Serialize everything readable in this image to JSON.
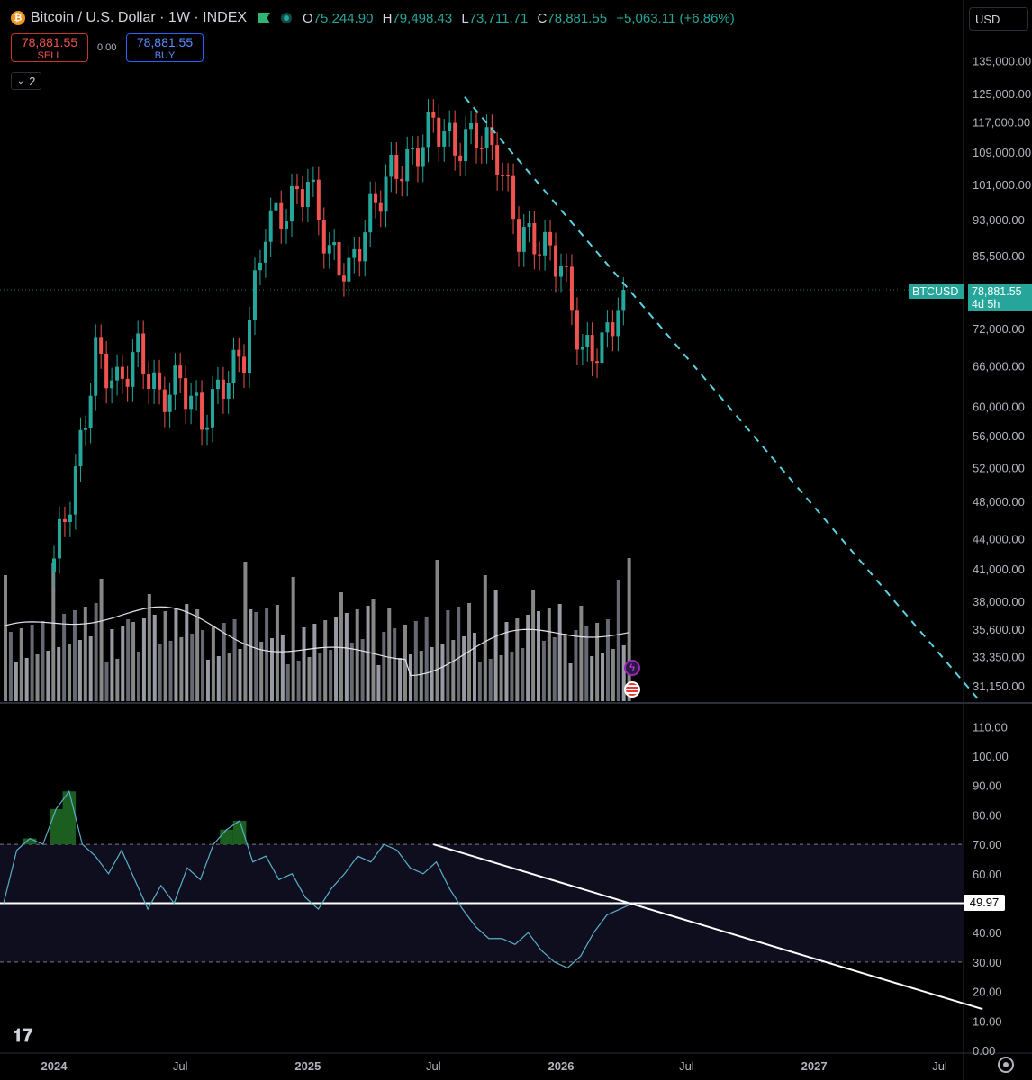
{
  "header": {
    "title": "Bitcoin / U.S. Dollar · 1W · INDEX",
    "ohlc": [
      {
        "k": "O",
        "v": "75,244.90"
      },
      {
        "k": "H",
        "v": "79,498.43"
      },
      {
        "k": "L",
        "v": "73,711.71"
      },
      {
        "k": "C",
        "v": "78,881.55"
      }
    ],
    "change": "+5,063.11 (+6.86%)"
  },
  "trade": {
    "sell_price": "78,881.55",
    "sell_label": "SELL",
    "spread": "0.00",
    "buy_price": "78,881.55",
    "buy_label": "BUY",
    "layers_count": "2"
  },
  "currency": "USD",
  "price_tag": {
    "symbol": "BTCUSD",
    "price": "78,881.55",
    "countdown": "4d 5h"
  },
  "rsi_tag": "49.97",
  "colors": {
    "up": "#26a69a",
    "down": "#ef5350",
    "trendline": "#5ad2e0",
    "rsi_line": "#5ab0c9",
    "rsi_band": "#0f0e1f"
  },
  "chart_data": [
    {
      "type": "candlestick",
      "title": "Bitcoin / U.S. Dollar · 1W · INDEX",
      "scale": "log",
      "ylim": [
        30000,
        148000
      ],
      "y_ticks": [
        "135,000.00",
        "125,000.00",
        "117,000.00",
        "109,000.00",
        "101,000.00",
        "93,000.00",
        "85,500.00",
        "78,881.55",
        "72,000.00",
        "66,000.00",
        "60,000.00",
        "56,000.00",
        "52,000.00",
        "48,000.00",
        "44,000.00",
        "41,000.00",
        "38,000.00",
        "35,600.00",
        "33,350.00",
        "31,150.00"
      ],
      "x_ticks": [
        "2024",
        "Jul",
        "2025",
        "Jul",
        "2026",
        "Jul",
        "2027",
        "Jul"
      ],
      "close_series": [
        {
          "date": "2024-01-01",
          "close": 42000
        },
        {
          "date": "2024-02-01",
          "close": 51000
        },
        {
          "date": "2024-03-01",
          "close": 68000
        },
        {
          "date": "2024-04-01",
          "close": 63000
        },
        {
          "date": "2024-05-01",
          "close": 68500
        },
        {
          "date": "2024-06-01",
          "close": 61000
        },
        {
          "date": "2024-07-01",
          "close": 64000
        },
        {
          "date": "2024-08-01",
          "close": 58000
        },
        {
          "date": "2024-09-01",
          "close": 63500
        },
        {
          "date": "2024-10-01",
          "close": 68000
        },
        {
          "date": "2024-11-01",
          "close": 92000
        },
        {
          "date": "2024-12-01",
          "close": 95000
        },
        {
          "date": "2025-01-01",
          "close": 102000
        },
        {
          "date": "2025-02-01",
          "close": 86000
        },
        {
          "date": "2025-03-01",
          "close": 82000
        },
        {
          "date": "2025-04-01",
          "close": 94500
        },
        {
          "date": "2025-05-01",
          "close": 104000
        },
        {
          "date": "2025-06-01",
          "close": 107000
        },
        {
          "date": "2025-07-01",
          "close": 117500
        },
        {
          "date": "2025-08-01",
          "close": 110000
        },
        {
          "date": "2025-09-01",
          "close": 114000
        },
        {
          "date": "2025-10-01",
          "close": 108000
        },
        {
          "date": "2025-11-01",
          "close": 90000
        },
        {
          "date": "2025-12-01",
          "close": 88000
        },
        {
          "date": "2026-01-01",
          "close": 84000
        },
        {
          "date": "2026-02-01",
          "close": 68000
        },
        {
          "date": "2026-03-01",
          "close": 69000
        },
        {
          "date": "2026-04-01",
          "close": 78881.55
        }
      ],
      "trendline": {
        "from": {
          "date": "2025-08-15",
          "price": 124000
        },
        "to": {
          "date": "2026-04-15",
          "price": 78000
        }
      }
    },
    {
      "type": "line",
      "series": [
        {
          "name": "RSI",
          "values": [
            50,
            68,
            72,
            70,
            82,
            88,
            70,
            66,
            60,
            68,
            58,
            48,
            56,
            50,
            62,
            58,
            70,
            75,
            78,
            64,
            66,
            58,
            60,
            52,
            48,
            55,
            60,
            66,
            64,
            70,
            68,
            62,
            60,
            64,
            55,
            48,
            42,
            38,
            38,
            36,
            40,
            34,
            30,
            28,
            32,
            40,
            46,
            48,
            50
          ]
        }
      ],
      "ylim": [
        0,
        115
      ],
      "y_ticks": [
        "110.00",
        "100.00",
        "90.00",
        "80.00",
        "70.00",
        "60.00",
        "50.00",
        "40.00",
        "30.00",
        "20.00",
        "10.00",
        "0.00"
      ],
      "overbought": 70,
      "oversold": 30,
      "midline": 50,
      "trendline": {
        "from": {
          "date": "2025-07-01",
          "value": 70
        },
        "to": {
          "date": "2027-09-01",
          "value": 14
        }
      }
    }
  ]
}
